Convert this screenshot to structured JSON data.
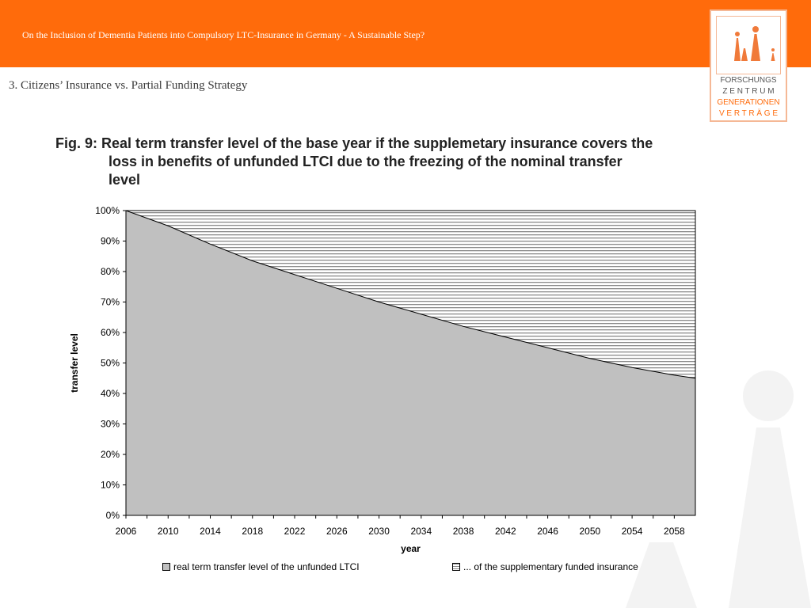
{
  "header": {
    "title": "On the Inclusion of Dementia Patients into Compulsory LTC-Insurance in Germany - A Sustainable Step?",
    "accent_color": "#ff6b0b"
  },
  "logo": {
    "lines": [
      "FORSCHUNGS",
      "Z E N T R U M",
      "GENERATIONEN",
      "V E R T R Ä G E"
    ],
    "icon": "family-figures-icon"
  },
  "section": {
    "title": "3.  Citizens’ Insurance vs. Partial Funding Strategy"
  },
  "chart_data": {
    "type": "area",
    "title_line1": "Fig. 9: Real term transfer level of the base year if the supplemetary insurance covers the",
    "title_line2": "loss in benefits of unfunded LTCI due to the freezing of the nominal transfer",
    "title_line3": "level",
    "xlabel": "year",
    "ylabel": "transfer level",
    "xlim": [
      2006,
      2060
    ],
    "ylim": [
      0,
      1
    ],
    "x_ticks": [
      "2006",
      "2010",
      "2014",
      "2018",
      "2022",
      "2026",
      "2030",
      "2034",
      "2038",
      "2042",
      "2046",
      "2050",
      "2054",
      "2058"
    ],
    "y_ticks": [
      "0%",
      "10%",
      "20%",
      "30%",
      "40%",
      "50%",
      "60%",
      "70%",
      "80%",
      "90%",
      "100%"
    ],
    "x": [
      2006,
      2010,
      2014,
      2018,
      2022,
      2026,
      2030,
      2034,
      2038,
      2042,
      2046,
      2050,
      2054,
      2058,
      2060
    ],
    "series": [
      {
        "name": "real term transfer level of the unfunded LTCI",
        "color": "#c0c0c0",
        "values": [
          1.0,
          0.95,
          0.89,
          0.835,
          0.79,
          0.745,
          0.7,
          0.66,
          0.62,
          0.585,
          0.55,
          0.515,
          0.485,
          0.46,
          0.45
        ]
      },
      {
        "name": "... of the supplementary funded insurance",
        "color": "#ffffff",
        "pattern": "horizontal-stripes",
        "values": [
          0.0,
          0.05,
          0.11,
          0.165,
          0.21,
          0.255,
          0.3,
          0.34,
          0.38,
          0.415,
          0.45,
          0.485,
          0.515,
          0.54,
          0.55
        ]
      }
    ],
    "legend_position": "bottom",
    "grid": false
  }
}
